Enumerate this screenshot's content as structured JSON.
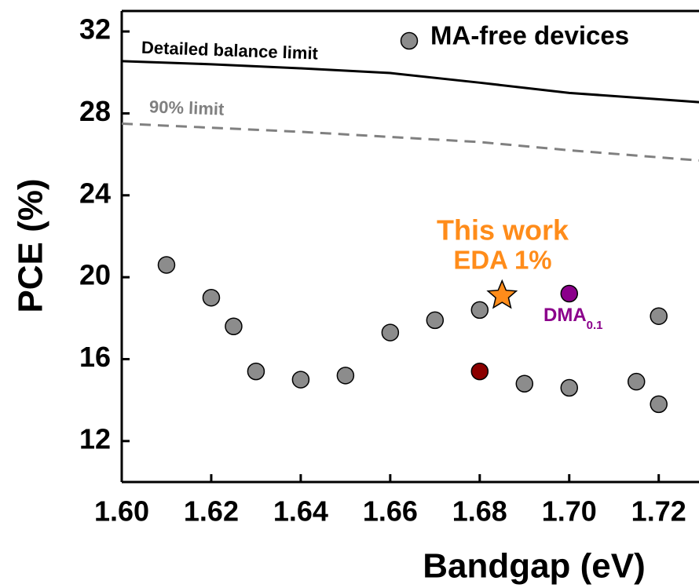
{
  "chart_data": {
    "type": "scatter",
    "x_label": "Bandgap (eV)",
    "y_label": "PCE (%)",
    "xlim": [
      1.6,
      1.729
    ],
    "ylim": [
      10,
      33
    ],
    "xticks": [
      {
        "value": 1.6,
        "label": "1.60"
      },
      {
        "value": 1.62,
        "label": "1.62"
      },
      {
        "value": 1.64,
        "label": "1.64"
      },
      {
        "value": 1.66,
        "label": "1.66"
      },
      {
        "value": 1.68,
        "label": "1.68"
      },
      {
        "value": 1.7,
        "label": "1.70"
      },
      {
        "value": 1.72,
        "label": "1.72"
      }
    ],
    "yticks": [
      12,
      16,
      20,
      24,
      28,
      32
    ],
    "legend_position": "upper right",
    "series": [
      {
        "name": "MA-free devices",
        "color": "#8c8c8c",
        "marker": "circle",
        "x": [
          1.61,
          1.62,
          1.625,
          1.63,
          1.64,
          1.65,
          1.66,
          1.67,
          1.68,
          1.69,
          1.7,
          1.715,
          1.72,
          1.72
        ],
        "values": [
          20.6,
          19.0,
          17.6,
          15.4,
          15.0,
          15.2,
          17.3,
          17.9,
          18.4,
          14.8,
          14.6,
          14.9,
          13.8,
          18.1
        ]
      },
      {
        "color": "#8b0000",
        "marker": "circle",
        "x": [
          1.68
        ],
        "values": [
          15.4
        ]
      },
      {
        "color": "#8b008b",
        "marker": "circle",
        "x": [
          1.7
        ],
        "values": [
          19.2
        ]
      },
      {
        "color": "#ff8c1a",
        "marker": "star",
        "x": [
          1.685
        ],
        "values": [
          19.1
        ]
      }
    ],
    "lines": [
      {
        "name": "Detailed balance limit",
        "color": "#000000",
        "dashed": false,
        "x": [
          1.6,
          1.62,
          1.64,
          1.66,
          1.68,
          1.7,
          1.729
        ],
        "values": [
          30.55,
          30.4,
          30.2,
          29.97,
          29.5,
          29.0,
          28.55
        ]
      },
      {
        "name": "90% limit",
        "color": "#808080",
        "dashed": true,
        "x": [
          1.6,
          1.64,
          1.68,
          1.7,
          1.729
        ],
        "values": [
          27.5,
          27.1,
          26.6,
          26.2,
          25.7
        ]
      }
    ],
    "annotations": [
      {
        "text": "This work",
        "color": "#ff8c1a"
      },
      {
        "text": "EDA 1%",
        "color": "#ff8c1a"
      },
      {
        "text": "DMA",
        "subscript": "0.1",
        "color": "#8b008b"
      }
    ]
  }
}
